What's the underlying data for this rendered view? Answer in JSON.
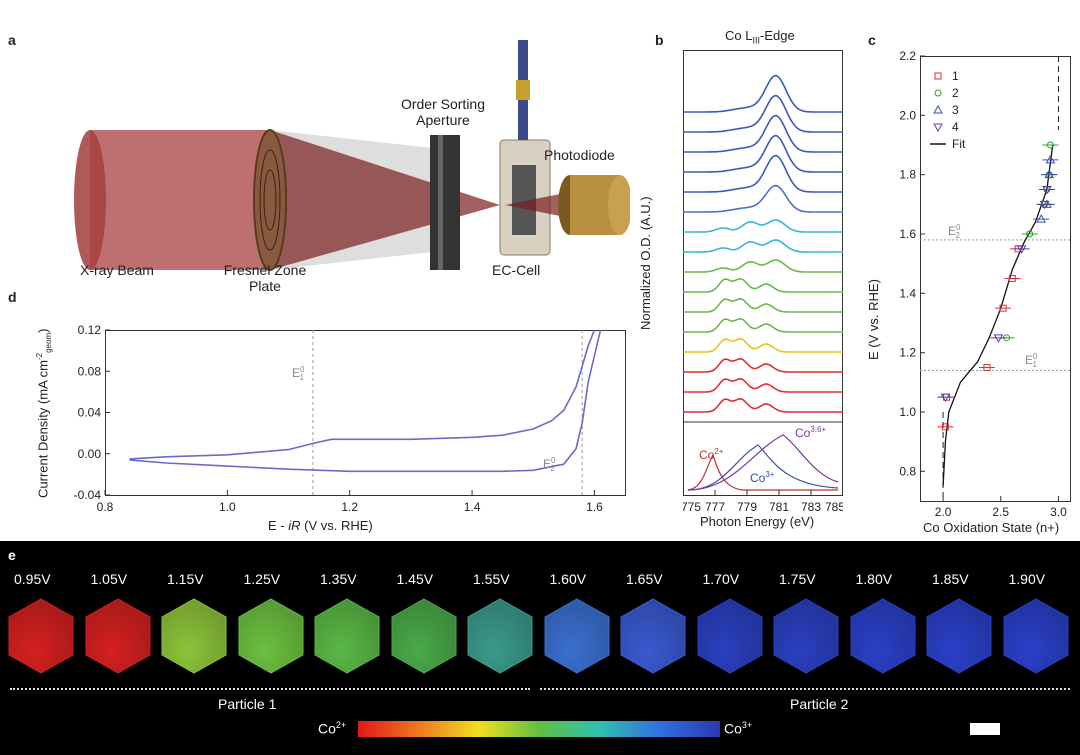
{
  "panel_a": {
    "label": "a",
    "xray_beam": "X-ray Beam",
    "zone_plate_line1": "Fresnel Zone",
    "zone_plate_line2": "Plate",
    "osa_line1": "Order Sorting",
    "osa_line2": "Aperture",
    "ec_cell": "EC-Cell",
    "photodiode": "Photodiode"
  },
  "panel_b": {
    "label": "b",
    "title": "Co L",
    "title_sub": "III",
    "title_suffix": "-Edge",
    "ylabel": "Normalized O.D. (A.U.)",
    "xlabel": "Photon Energy (eV)",
    "xticks": [
      "775",
      "777",
      "779",
      "781",
      "783",
      "785"
    ],
    "ref_co2": "Co",
    "ref_co2_sup": "2+",
    "ref_co3": "Co",
    "ref_co3_sup": "3+",
    "ref_co36": "Co",
    "ref_co36_sup": "3.6+",
    "spectra_colors": [
      "#d93030",
      "#d93030",
      "#d93030",
      "#e8c020",
      "#6bb84a",
      "#6bb84a",
      "#6bb84a",
      "#6bb84a",
      "#39b4d8",
      "#39b4d8",
      "#4a70c8",
      "#3a5ab8",
      "#3a5ab8",
      "#3a5ab8",
      "#3a5ab8",
      "#3a5ab8"
    ]
  },
  "panel_c": {
    "label": "c",
    "ylabel": "E (V vs. RHE)",
    "xlabel": "Co Oxidation State (n+)",
    "yticks": [
      "0.8",
      "1.0",
      "1.2",
      "1.4",
      "1.6",
      "1.8",
      "2.0",
      "2.2"
    ],
    "xticks": [
      "2.0",
      "2.5",
      "3.0"
    ],
    "legend": [
      {
        "label": "1",
        "color": "#d93030",
        "symbol": "square"
      },
      {
        "label": "2",
        "color": "#2ca02c",
        "symbol": "circle"
      },
      {
        "label": "3",
        "color": "#3a4fb0",
        "symbol": "triangle-up"
      },
      {
        "label": "4",
        "color": "#5a3fa0",
        "symbol": "triangle-down"
      },
      {
        "label": "Fit",
        "color": "#111111",
        "symbol": "line"
      }
    ],
    "e1_label": "E",
    "e2_label": "E",
    "sup0": "0",
    "sub1": "1",
    "sub2": "2"
  },
  "panel_d": {
    "label": "d",
    "ylabel_main": "Current Density (mA cm",
    "ylabel_sup": "-2",
    "ylabel_sub": "geom",
    "ylabel_end": ")",
    "xlabel_main": "E - ",
    "xlabel_ir": "iR",
    "xlabel_end": " (V vs. RHE)",
    "xticks": [
      "0.8",
      "1.0",
      "1.2",
      "1.4",
      "1.6"
    ],
    "yticks": [
      "-0.04",
      "0.00",
      "0.04",
      "0.08",
      "0.12"
    ],
    "e1_label": "E",
    "e2_label": "E",
    "sup0": "0",
    "sub1": "1",
    "sub2": "2"
  },
  "panel_e": {
    "label": "e",
    "voltages": [
      "0.95V",
      "1.05V",
      "1.15V",
      "1.25V",
      "1.35V",
      "1.45V",
      "1.55V",
      "1.60V",
      "1.65V",
      "1.70V",
      "1.75V",
      "1.80V",
      "1.85V",
      "1.90V"
    ],
    "hex_colors": [
      "#d42020",
      "#d42020",
      "#8cc43a",
      "#6cc040",
      "#5ab845",
      "#4aaa48",
      "#3a9a8c",
      "#3a70d0",
      "#3a5ad0",
      "#2a40c0",
      "#2a40c0",
      "#2a40c8",
      "#2a40c8",
      "#2a40c8"
    ],
    "particle1": "Particle 1",
    "particle2": "Particle 2",
    "cbar_left": "Co",
    "cbar_left_sup": "2+",
    "cbar_right": "Co",
    "cbar_right_sup": "3+"
  },
  "chart_data": [
    {
      "type": "line",
      "panel": "d",
      "xlabel": "E - iR (V vs. RHE)",
      "ylabel": "Current Density (mA cm-2 geom)",
      "xlim": [
        0.8,
        1.65
      ],
      "ylim": [
        -0.04,
        0.12
      ],
      "series": [
        {
          "x": [
            0.84,
            0.9,
            1.0,
            1.1,
            1.14,
            1.17,
            1.2,
            1.3,
            1.4,
            1.45,
            1.5,
            1.53,
            1.55,
            1.57,
            1.58,
            1.59,
            1.6
          ],
          "y": [
            -0.005,
            -0.003,
            -0.001,
            0.004,
            0.01,
            0.014,
            0.014,
            0.014,
            0.016,
            0.018,
            0.024,
            0.032,
            0.042,
            0.065,
            0.085,
            0.105,
            0.12
          ]
        },
        {
          "x": [
            1.61,
            1.59,
            1.58,
            1.57,
            1.55,
            1.5,
            1.45,
            1.4,
            1.3,
            1.2,
            1.1,
            1.0,
            0.9,
            0.84
          ],
          "y": [
            0.12,
            0.07,
            0.03,
            0.005,
            -0.01,
            -0.016,
            -0.017,
            -0.017,
            -0.017,
            -0.017,
            -0.015,
            -0.012,
            -0.009,
            -0.006
          ]
        }
      ],
      "reference_lines": [
        {
          "x": 1.14
        },
        {
          "x": 1.58
        }
      ]
    },
    {
      "type": "scatter",
      "panel": "c",
      "xlabel": "Co Oxidation State (n+)",
      "ylabel": "E (V vs. RHE)",
      "xlim": [
        1.8,
        3.1
      ],
      "ylim": [
        0.7,
        2.2
      ],
      "series": [
        {
          "name": "1",
          "x": [
            2.02,
            2.03,
            2.38,
            2.52,
            2.6,
            2.65
          ],
          "y": [
            0.95,
            1.05,
            1.15,
            1.35,
            1.45,
            1.55
          ]
        },
        {
          "name": "2",
          "x": [
            2.55,
            2.75,
            2.88,
            2.9,
            2.92,
            2.93
          ],
          "y": [
            1.25,
            1.6,
            1.7,
            1.75,
            1.8,
            1.9
          ]
        },
        {
          "name": "3",
          "x": [
            2.85,
            2.9,
            2.92,
            2.93
          ],
          "y": [
            1.65,
            1.7,
            1.8,
            1.85
          ]
        },
        {
          "name": "4",
          "x": [
            2.02,
            2.48,
            2.68,
            2.88,
            2.9
          ],
          "y": [
            1.05,
            1.25,
            1.55,
            1.7,
            1.75
          ]
        },
        {
          "name": "Fit",
          "x": [
            2.0,
            2.02,
            2.05,
            2.15,
            2.3,
            2.4,
            2.5,
            2.6,
            2.7,
            2.8,
            2.9,
            2.95
          ],
          "y": [
            0.75,
            0.9,
            1.0,
            1.1,
            1.17,
            1.25,
            1.35,
            1.48,
            1.57,
            1.64,
            1.75,
            1.9
          ]
        }
      ],
      "reference_lines": [
        {
          "y": 1.14
        },
        {
          "y": 1.58
        },
        {
          "x": 3.0
        },
        {
          "x": 2.0
        }
      ]
    }
  ]
}
